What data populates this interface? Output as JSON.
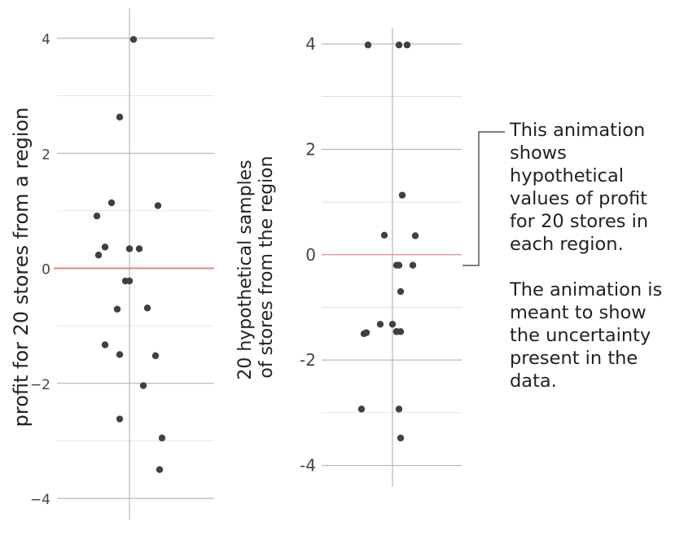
{
  "colors": {
    "background": "#ffffff",
    "grid": "#a9a9a9",
    "point": "#404040",
    "reference_line": "#f08080",
    "text": "#222222",
    "bracket": "#333333"
  },
  "chart_data": [
    {
      "type": "scatter",
      "title": "",
      "xlabel": "",
      "ylabel": "profit for 20 stores from a region",
      "ylim": [
        -4,
        4
      ],
      "yticks": [
        4,
        2,
        0,
        -2,
        -4
      ],
      "ytick_labels": [
        "4",
        "2",
        "0",
        "−2",
        "−4"
      ],
      "grid": true,
      "reference_line_y": 0,
      "x": [
        0.05,
        -0.12,
        -0.22,
        -0.4,
        0.35,
        -0.3,
        0.12,
        -0.38,
        -0.05,
        -0.15,
        0.22,
        -0.3,
        -0.12,
        0.32,
        0.17,
        -0.12,
        0.4,
        0.37,
        0.0,
        0.0
      ],
      "y": [
        3.98,
        2.63,
        1.14,
        0.91,
        1.09,
        0.37,
        0.34,
        0.23,
        -0.22,
        -0.71,
        -0.69,
        -1.33,
        -1.5,
        -1.52,
        -2.04,
        -2.62,
        -2.95,
        -3.5,
        -0.22,
        0.34
      ]
    },
    {
      "type": "scatter",
      "title": "",
      "xlabel": "",
      "ylabel": "20 hypothetical samples of stores from the region",
      "ylim": [
        -4.3,
        4.2
      ],
      "yticks": [
        4,
        2,
        0,
        -2,
        -4
      ],
      "ytick_labels": [
        "4",
        "2",
        "0",
        "-2",
        "-4"
      ],
      "grid": true,
      "reference_line_y": 0,
      "x": [
        -0.3,
        0.08,
        0.18,
        0.12,
        -0.1,
        0.28,
        0.05,
        0.25,
        0.1,
        -0.15,
        0.0,
        -0.32,
        -0.35,
        0.05,
        0.1,
        -0.38,
        0.08,
        0.1,
        0.05,
        0.08
      ],
      "y": [
        3.98,
        3.98,
        3.98,
        1.13,
        0.37,
        0.36,
        -0.2,
        -0.2,
        -0.7,
        -1.32,
        -1.32,
        -1.48,
        -1.5,
        -1.46,
        -1.46,
        -2.93,
        -2.93,
        -3.48,
        -1.46,
        -0.2
      ]
    }
  ],
  "annotation": {
    "paragraph_1": [
      "This animation",
      "shows",
      "hypothetical",
      "values of profit",
      "for 20 stores in",
      "each region."
    ],
    "paragraph_2": [
      "The animation is",
      "meant to show",
      "the uncertainty",
      "present in the",
      "data."
    ]
  }
}
